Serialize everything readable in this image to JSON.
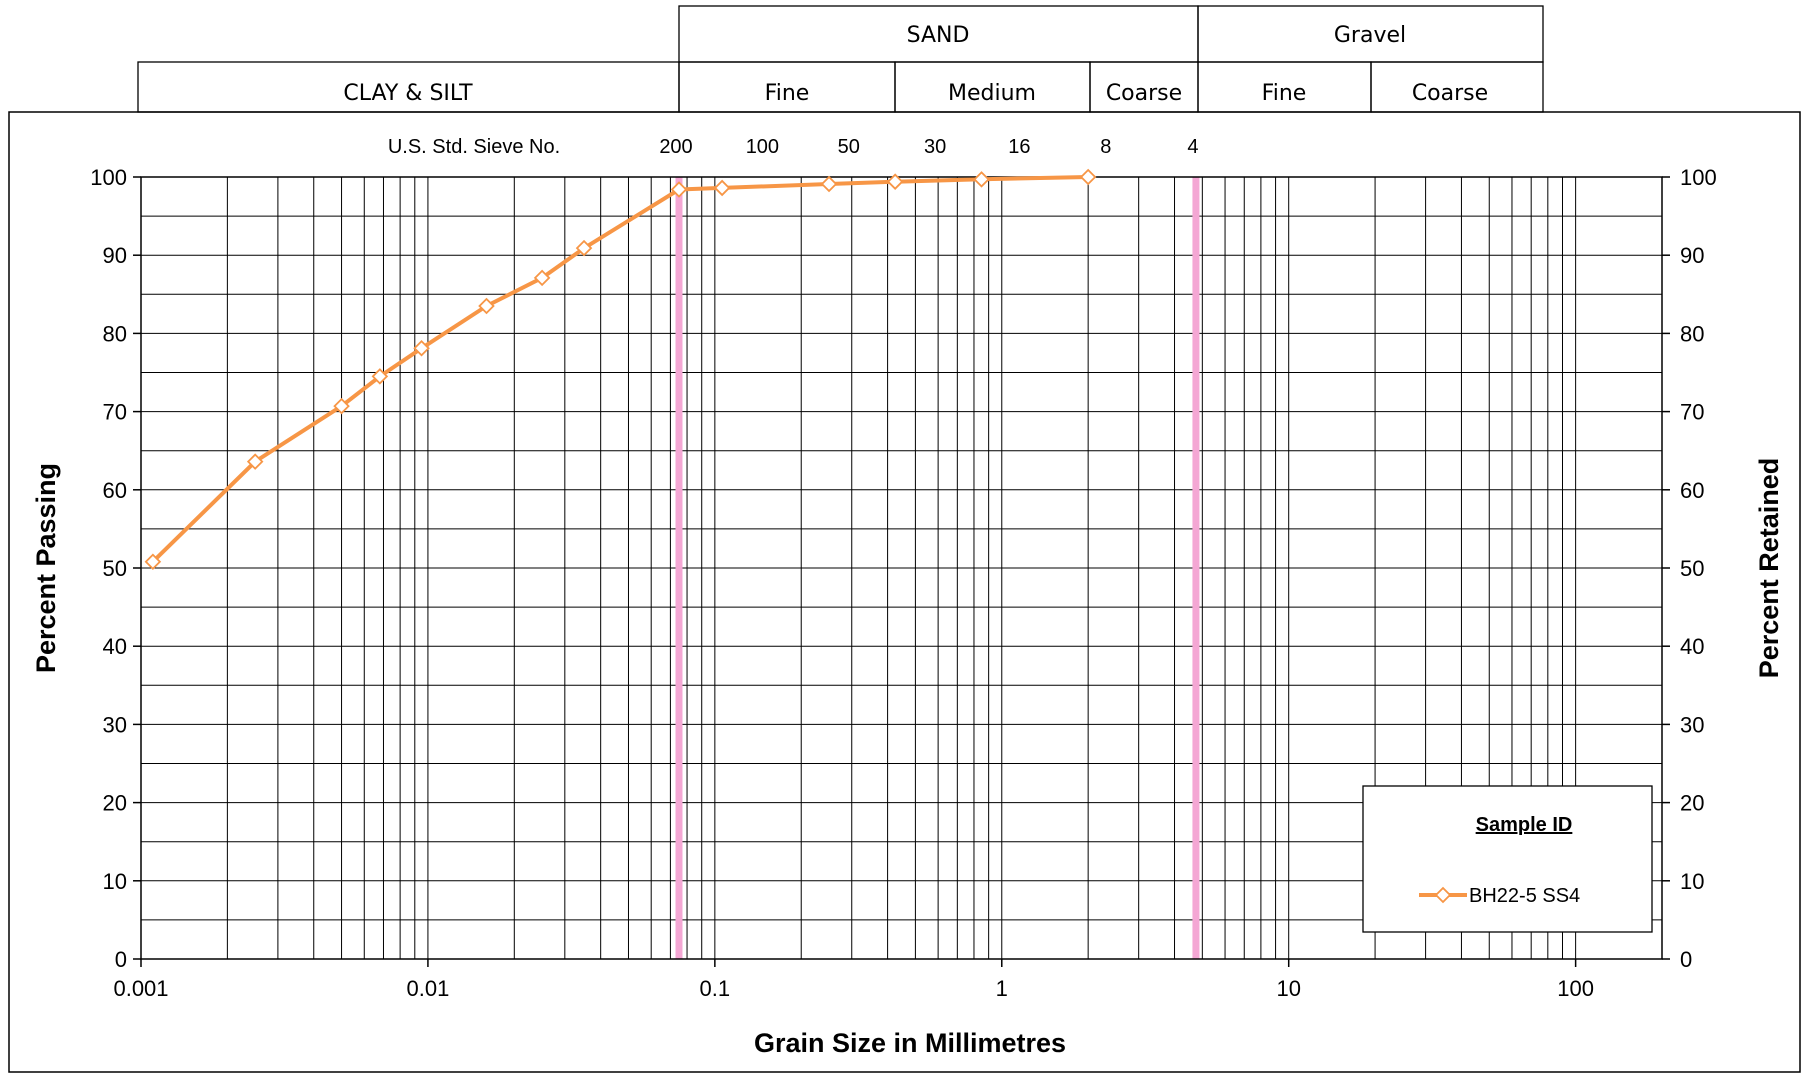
{
  "chart_data": {
    "type": "line",
    "x_scale": "log",
    "xlim": [
      0.001,
      200
    ],
    "ylim": [
      0,
      100
    ],
    "grid": true,
    "xlabel": "Grain Size in Millimetres",
    "ylabel": "Percent Passing",
    "ylabel_right": "Percent Retained",
    "x_ticks": [
      {
        "value": 0.001,
        "label": "0.001"
      },
      {
        "value": 0.01,
        "label": "0.01"
      },
      {
        "value": 0.1,
        "label": "0.1"
      },
      {
        "value": 1,
        "label": "1"
      },
      {
        "value": 10,
        "label": "10"
      },
      {
        "value": 100,
        "label": "100"
      }
    ],
    "y_ticks": [
      0,
      10,
      20,
      30,
      40,
      50,
      60,
      70,
      80,
      90,
      100
    ],
    "y_ticks_right": [
      100,
      90,
      80,
      70,
      60,
      50,
      40,
      30,
      20,
      10,
      0
    ],
    "sieve_title": "U.S. Std. Sieve No.",
    "sieves": [
      {
        "label": "200",
        "size": 0.075
      },
      {
        "label": "100",
        "size": 0.15
      },
      {
        "label": "50",
        "size": 0.3
      },
      {
        "label": "30",
        "size": 0.6
      },
      {
        "label": "16",
        "size": 1.18
      },
      {
        "label": "8",
        "size": 2.36
      },
      {
        "label": "4",
        "size": 4.75
      }
    ],
    "boundary_lines": [
      0.075,
      4.75
    ],
    "boundary_color": "#f4a7d4",
    "series": [
      {
        "name": "BH22-5 SS4",
        "color": "#f79646",
        "marker": "diamond",
        "points": [
          {
            "x": 0.0011,
            "y": 50.8
          },
          {
            "x": 0.0025,
            "y": 63.6
          },
          {
            "x": 0.005,
            "y": 70.7
          },
          {
            "x": 0.0068,
            "y": 74.5
          },
          {
            "x": 0.0095,
            "y": 78.1
          },
          {
            "x": 0.016,
            "y": 83.5
          },
          {
            "x": 0.025,
            "y": 87.1
          },
          {
            "x": 0.035,
            "y": 90.9
          },
          {
            "x": 0.075,
            "y": 98.4
          },
          {
            "x": 0.106,
            "y": 98.6
          },
          {
            "x": 0.25,
            "y": 99.1
          },
          {
            "x": 0.425,
            "y": 99.4
          },
          {
            "x": 0.85,
            "y": 99.7
          },
          {
            "x": 2.0,
            "y": 100
          }
        ]
      }
    ],
    "legend": {
      "title": "Sample ID",
      "position": "bottom-right"
    }
  },
  "classification": {
    "clay_silt": "CLAY & SILT",
    "sand": "SAND",
    "sand_fine": "Fine",
    "sand_medium": "Medium",
    "sand_coarse": "Coarse",
    "gravel": "Gravel",
    "gravel_fine": "Fine",
    "gravel_coarse": "Coarse"
  }
}
